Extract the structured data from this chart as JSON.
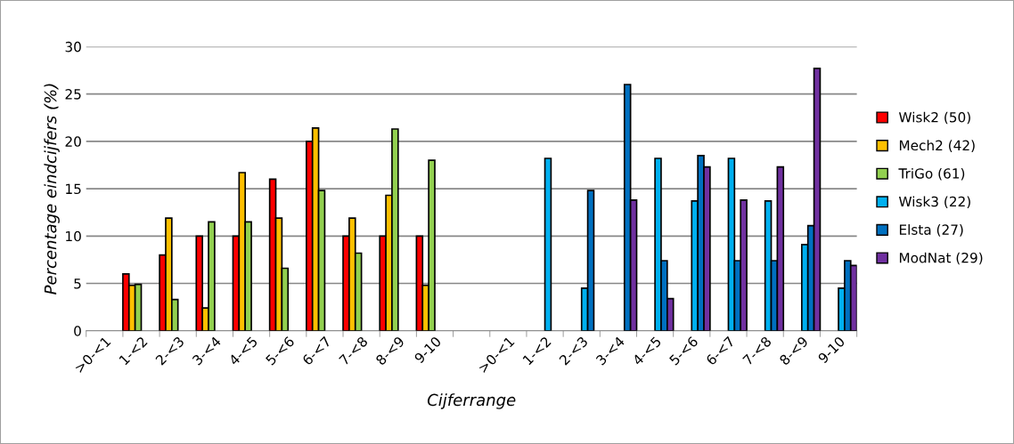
{
  "chart_data": {
    "type": "bar",
    "xlabel": "Cijferrange",
    "ylabel": "Percentage eindcijfers (%)",
    "categories": [
      ">0-<1",
      "1-<2",
      "2-<3",
      "3-<4",
      "4-<5",
      "5-<6",
      "6-<7",
      "7-<8",
      "8-<9",
      "9-10",
      null,
      ">0-<1",
      "1-<2",
      "2-<3",
      "3-<4",
      "4-<5",
      "5-<6",
      "6-<7",
      "7-<8",
      "8-<9",
      "9-10"
    ],
    "series": [
      {
        "name": "Wisk2 (50)",
        "color": "#ff0000",
        "values": [
          0,
          6,
          8,
          10,
          10,
          16,
          20,
          10,
          10,
          10,
          null,
          null,
          null,
          null,
          null,
          null,
          null,
          null,
          null,
          null,
          null
        ]
      },
      {
        "name": "Mech2 (42)",
        "color": "#ffc000",
        "values": [
          0,
          4.8,
          11.9,
          2.4,
          16.7,
          11.9,
          21.4,
          11.9,
          14.3,
          4.8,
          null,
          null,
          null,
          null,
          null,
          null,
          null,
          null,
          null,
          null,
          null
        ]
      },
      {
        "name": "TriGo (61)",
        "color": "#92d050",
        "values": [
          0,
          4.9,
          3.3,
          11.5,
          11.5,
          6.6,
          14.8,
          8.2,
          21.3,
          18.0,
          null,
          null,
          null,
          null,
          null,
          null,
          null,
          null,
          null,
          null,
          null
        ]
      },
      {
        "name": "Wisk3 (22)",
        "color": "#00b0f0",
        "values": [
          null,
          null,
          null,
          null,
          null,
          null,
          null,
          null,
          null,
          null,
          null,
          0,
          18.2,
          4.5,
          0,
          18.2,
          13.7,
          18.2,
          13.7,
          9.1,
          4.5
        ]
      },
      {
        "name": "Elsta (27)",
        "color": "#0070c0",
        "values": [
          null,
          null,
          null,
          null,
          null,
          null,
          null,
          null,
          null,
          null,
          null,
          0,
          0,
          14.8,
          26.0,
          7.4,
          18.5,
          7.4,
          7.4,
          11.1,
          7.4
        ]
      },
      {
        "name": "ModNat (29)",
        "color": "#7030a0",
        "values": [
          null,
          null,
          null,
          null,
          null,
          null,
          null,
          null,
          null,
          null,
          null,
          0,
          0,
          0,
          13.8,
          3.4,
          17.3,
          13.8,
          17.3,
          27.7,
          6.9
        ]
      }
    ],
    "ylim": [
      0,
      30
    ],
    "yticks": [
      0,
      5,
      10,
      15,
      20,
      25,
      30
    ],
    "grid": "y",
    "legend": "right"
  }
}
